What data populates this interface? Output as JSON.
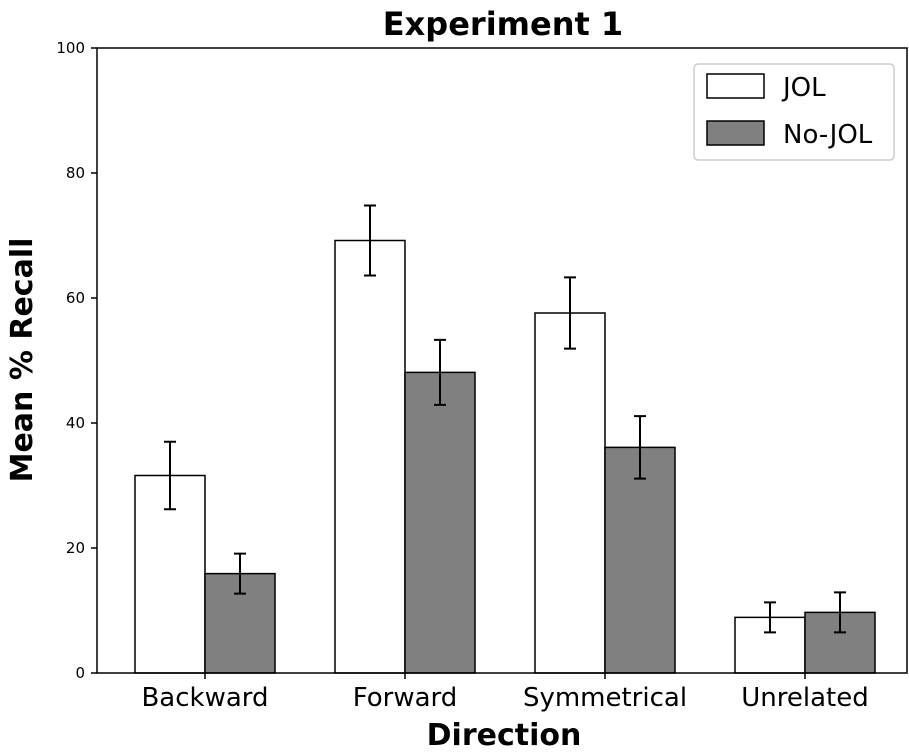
{
  "chart_data": {
    "type": "bar",
    "title": "Experiment 1",
    "xlabel": "Direction",
    "ylabel": "Mean % Recall",
    "categories": [
      "Backward",
      "Forward",
      "Symmetrical",
      "Unrelated"
    ],
    "ylim": [
      0,
      100
    ],
    "yticks": [
      "0",
      "20",
      "40",
      "60",
      "80",
      "100"
    ],
    "series": [
      {
        "name": "JOL",
        "color": "#ffffff",
        "values": [
          31.6,
          69.2,
          57.6,
          8.9
        ],
        "error": [
          5.4,
          5.6,
          5.7,
          2.4
        ]
      },
      {
        "name": "No-JOL",
        "color": "#808080",
        "values": [
          15.9,
          48.1,
          36.1,
          9.7
        ],
        "error": [
          3.2,
          5.2,
          5.0,
          3.2
        ]
      }
    ],
    "legend": "top-right",
    "grid": false
  }
}
